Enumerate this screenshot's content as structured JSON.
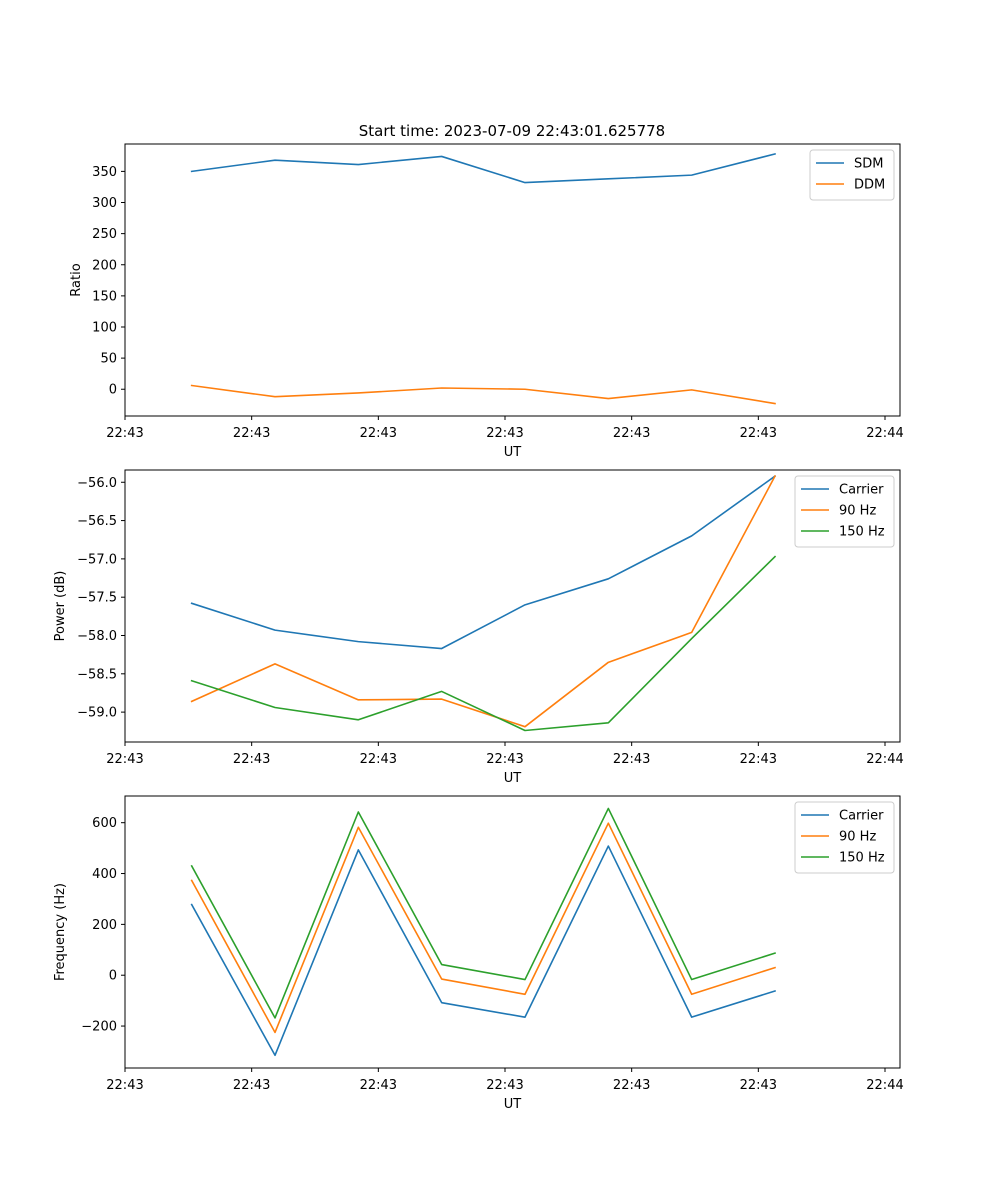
{
  "figure_title": "Start time: 2023-07-09 22:43:01.625778",
  "chart_data": [
    {
      "type": "line",
      "title": "Start time: 2023-07-09 22:43:01.625778",
      "xlabel": "UT",
      "ylabel": "Ratio",
      "x": [
        1,
        2,
        3,
        4,
        5,
        6,
        7,
        8
      ],
      "xlim": [
        0.2,
        9.5
      ],
      "x_ticks": [
        0.2,
        1.72,
        3.24,
        4.76,
        6.28,
        7.8,
        9.32
      ],
      "x_tick_labels": [
        "22:43",
        "22:43",
        "22:43",
        "22:43",
        "22:43",
        "22:43",
        "22:44"
      ],
      "ylim": [
        -43,
        394
      ],
      "y_ticks": [
        0,
        50,
        100,
        150,
        200,
        250,
        300,
        350
      ],
      "y_tick_labels": [
        "0",
        "50",
        "100",
        "150",
        "200",
        "250",
        "300",
        "350"
      ],
      "legend_position": "top-right",
      "series": [
        {
          "name": "SDM",
          "color": "#1f77b4",
          "values": [
            350,
            368,
            361,
            374,
            332,
            338,
            344,
            378
          ]
        },
        {
          "name": "DDM",
          "color": "#ff7f0e",
          "values": [
            6,
            -12,
            -6,
            2,
            0,
            -15,
            -1,
            -23
          ]
        }
      ]
    },
    {
      "type": "line",
      "title": "",
      "xlabel": "UT",
      "ylabel": "Power (dB)",
      "x": [
        1,
        2,
        3,
        4,
        5,
        6,
        7,
        8
      ],
      "xlim": [
        0.2,
        9.5
      ],
      "x_ticks": [
        0.2,
        1.72,
        3.24,
        4.76,
        6.28,
        7.8,
        9.32
      ],
      "x_tick_labels": [
        "22:43",
        "22:43",
        "22:43",
        "22:43",
        "22:43",
        "22:43",
        "22:44"
      ],
      "ylim": [
        -59.39,
        -55.84
      ],
      "y_ticks": [
        -59.0,
        -58.5,
        -58.0,
        -57.5,
        -57.0,
        -56.5,
        -56.0
      ],
      "y_tick_labels": [
        "−59.0",
        "−58.5",
        "−58.0",
        "−57.5",
        "−57.0",
        "−56.5",
        "−56.0"
      ],
      "legend_position": "top-right",
      "series": [
        {
          "name": "Carrier",
          "color": "#1f77b4",
          "values": [
            -57.58,
            -57.93,
            -58.08,
            -58.17,
            -57.6,
            -57.26,
            -56.7,
            -55.92
          ]
        },
        {
          "name": "90 Hz",
          "color": "#ff7f0e",
          "values": [
            -58.86,
            -58.37,
            -58.84,
            -58.83,
            -59.19,
            -58.35,
            -57.96,
            -55.92
          ]
        },
        {
          "name": "150 Hz",
          "color": "#2ca02c",
          "values": [
            -58.59,
            -58.94,
            -59.1,
            -58.73,
            -59.24,
            -59.14,
            -58.04,
            -56.97
          ]
        }
      ]
    },
    {
      "type": "line",
      "title": "",
      "xlabel": "UT",
      "ylabel": "Frequency (Hz)",
      "x": [
        1,
        2,
        3,
        4,
        5,
        6,
        7,
        8
      ],
      "xlim": [
        0.2,
        9.5
      ],
      "x_ticks": [
        0.2,
        1.72,
        3.24,
        4.76,
        6.28,
        7.8,
        9.32
      ],
      "x_tick_labels": [
        "22:43",
        "22:43",
        "22:43",
        "22:43",
        "22:43",
        "22:43",
        "22:44"
      ],
      "ylim": [
        -365,
        705
      ],
      "y_ticks": [
        -200,
        0,
        200,
        400,
        600
      ],
      "y_tick_labels": [
        "−200",
        "0",
        "200",
        "400",
        "600"
      ],
      "legend_position": "top-right",
      "series": [
        {
          "name": "Carrier",
          "color": "#1f77b4",
          "values": [
            278,
            -315,
            493,
            -108,
            -165,
            508,
            -165,
            -62
          ]
        },
        {
          "name": "90 Hz",
          "color": "#ff7f0e",
          "values": [
            373,
            -225,
            582,
            -15,
            -75,
            598,
            -75,
            30
          ]
        },
        {
          "name": "150 Hz",
          "color": "#2ca02c",
          "values": [
            430,
            -168,
            642,
            42,
            -17,
            656,
            -17,
            87
          ]
        }
      ]
    }
  ]
}
